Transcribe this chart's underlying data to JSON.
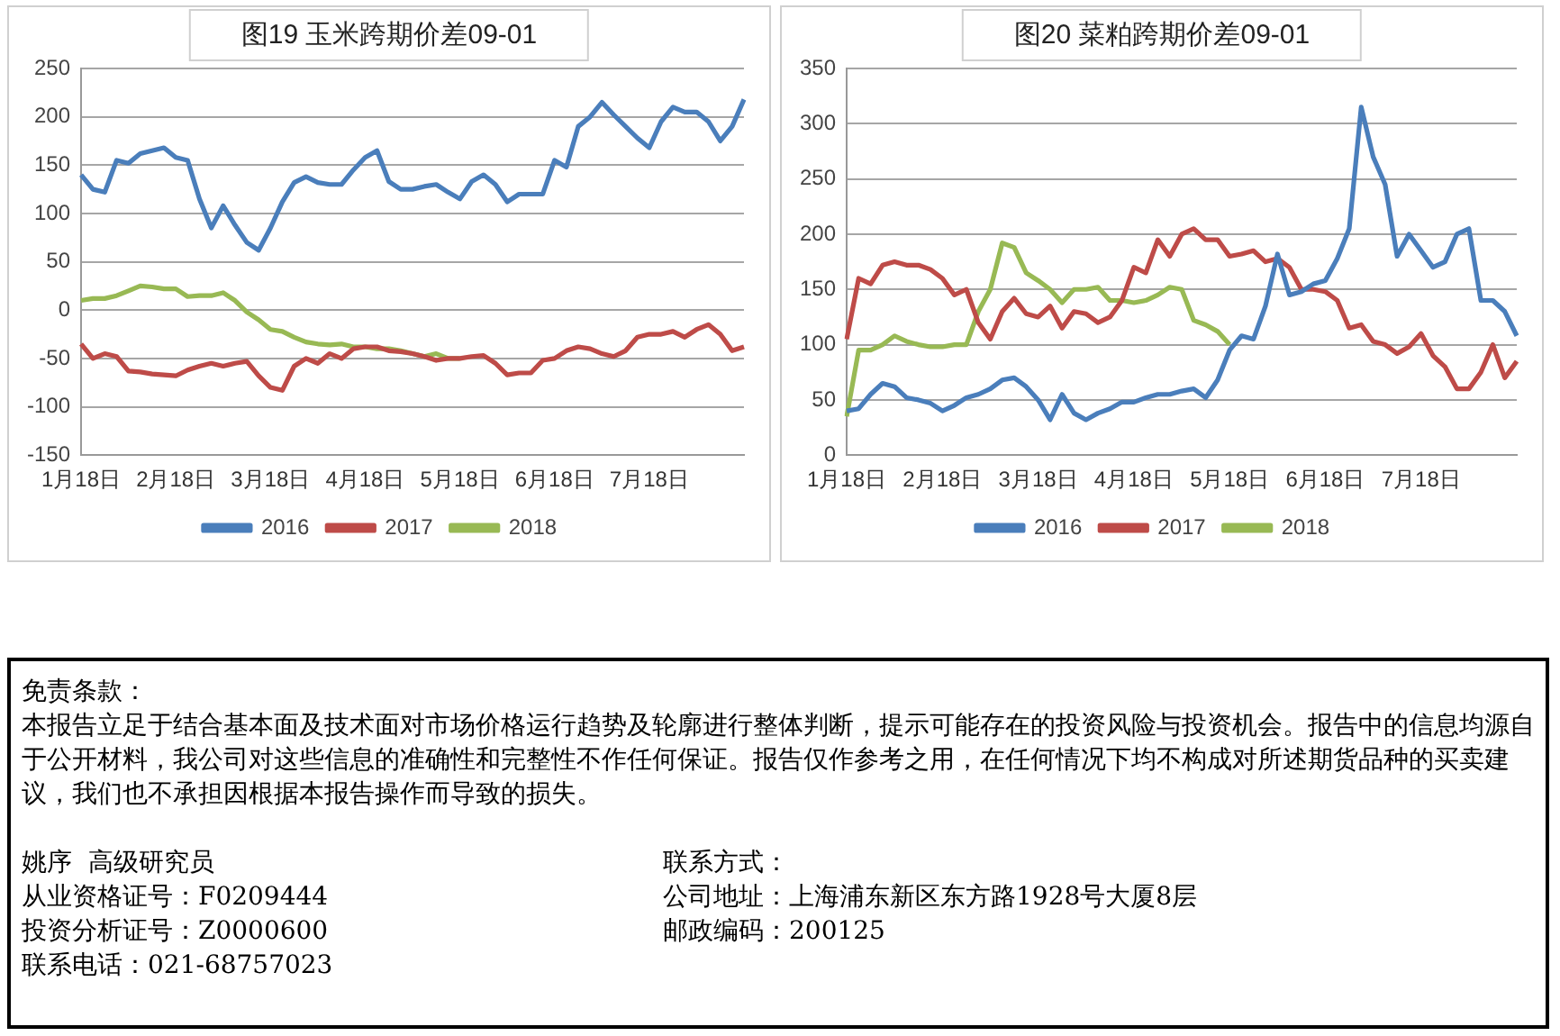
{
  "chart_data": [
    {
      "type": "line",
      "title": "图19 玉米跨期价差09-01",
      "categories": [
        "1月18日",
        null,
        null,
        null,
        null,
        null,
        null,
        null,
        "2月18日",
        null,
        null,
        null,
        null,
        null,
        null,
        null,
        "3月18日",
        null,
        null,
        null,
        null,
        null,
        null,
        null,
        "4月18日",
        null,
        null,
        null,
        null,
        null,
        null,
        null,
        "5月18日",
        null,
        null,
        null,
        null,
        null,
        null,
        null,
        "6月18日",
        null,
        null,
        null,
        null,
        null,
        null,
        null,
        "7月18日",
        null,
        null,
        null,
        null,
        null,
        null,
        null,
        null
      ],
      "ylim": [
        -150,
        250
      ],
      "yticks": [
        -150,
        -100,
        -50,
        0,
        50,
        100,
        150,
        200,
        250
      ],
      "grid": "y",
      "legend": "bottom",
      "series": [
        {
          "name": "2016",
          "color": "#4a7ebb",
          "values": [
            140,
            125,
            122,
            155,
            152,
            162,
            165,
            168,
            158,
            155,
            115,
            85,
            108,
            88,
            70,
            62,
            85,
            112,
            132,
            138,
            132,
            130,
            130,
            145,
            158,
            165,
            133,
            125,
            125,
            128,
            130,
            122,
            115,
            133,
            140,
            130,
            112,
            120,
            120,
            120,
            155,
            148,
            190,
            200,
            215,
            202,
            190,
            178,
            168,
            195,
            210,
            205,
            205,
            195,
            175,
            190,
            218
          ]
        },
        {
          "name": "2017",
          "color": "#be4b48",
          "values": [
            -35,
            -50,
            -45,
            -48,
            -63,
            -64,
            -66,
            -67,
            -68,
            -62,
            -58,
            -55,
            -58,
            -55,
            -53,
            -68,
            -80,
            -83,
            -58,
            -50,
            -55,
            -45,
            -50,
            -40,
            -38,
            -38,
            -42,
            -43,
            -45,
            -48,
            -52,
            -50,
            -50,
            -48,
            -47,
            -55,
            -67,
            -65,
            -65,
            -52,
            -50,
            -42,
            -38,
            -40,
            -45,
            -48,
            -42,
            -28,
            -25,
            -25,
            -22,
            -28,
            -20,
            -15,
            -25,
            -42,
            -38
          ]
        },
        {
          "name": "2018",
          "color": "#98b954",
          "values": [
            10,
            12,
            12,
            15,
            20,
            25,
            24,
            22,
            22,
            14,
            15,
            15,
            18,
            10,
            -2,
            -10,
            -20,
            -22,
            -28,
            -33,
            -35,
            -36,
            -35,
            -38,
            -38,
            -40,
            -40,
            -42,
            -45,
            -48,
            -45,
            -50,
            -50,
            null,
            null,
            null,
            null,
            null,
            null,
            null,
            null,
            null,
            null,
            null,
            null,
            null,
            null,
            null,
            null,
            null,
            null,
            null,
            null,
            null,
            null,
            null,
            null
          ]
        }
      ]
    },
    {
      "type": "line",
      "title": "图20 菜粕跨期价差09-01",
      "categories": [
        "1月18日",
        null,
        null,
        null,
        null,
        null,
        null,
        null,
        "2月18日",
        null,
        null,
        null,
        null,
        null,
        null,
        null,
        "3月18日",
        null,
        null,
        null,
        null,
        null,
        null,
        null,
        "4月18日",
        null,
        null,
        null,
        null,
        null,
        null,
        null,
        "5月18日",
        null,
        null,
        null,
        null,
        null,
        null,
        null,
        "6月18日",
        null,
        null,
        null,
        null,
        null,
        null,
        null,
        "7月18日",
        null,
        null,
        null,
        null,
        null,
        null,
        null,
        null
      ],
      "ylim": [
        0,
        350
      ],
      "yticks": [
        0,
        50,
        100,
        150,
        200,
        250,
        300,
        350
      ],
      "grid": "y",
      "legend": "bottom",
      "series": [
        {
          "name": "2016",
          "color": "#4a7ebb",
          "values": [
            40,
            42,
            55,
            65,
            62,
            52,
            50,
            47,
            40,
            45,
            52,
            55,
            60,
            68,
            70,
            62,
            50,
            32,
            55,
            38,
            32,
            38,
            42,
            48,
            48,
            52,
            55,
            55,
            58,
            60,
            52,
            68,
            95,
            108,
            105,
            135,
            182,
            145,
            148,
            155,
            158,
            178,
            205,
            315,
            270,
            245,
            180,
            200,
            185,
            170,
            175,
            200,
            205,
            140,
            140,
            130,
            108
          ]
        },
        {
          "name": "2017",
          "color": "#be4b48",
          "values": [
            105,
            160,
            155,
            172,
            175,
            172,
            172,
            168,
            160,
            145,
            150,
            120,
            105,
            130,
            142,
            128,
            125,
            135,
            115,
            130,
            128,
            120,
            125,
            140,
            170,
            165,
            195,
            180,
            200,
            205,
            195,
            195,
            180,
            182,
            185,
            175,
            178,
            170,
            150,
            150,
            148,
            140,
            115,
            118,
            103,
            100,
            92,
            98,
            110,
            90,
            80,
            60,
            60,
            75,
            100,
            70,
            85
          ]
        },
        {
          "name": "2018",
          "color": "#98b954",
          "values": [
            35,
            95,
            95,
            100,
            108,
            103,
            100,
            98,
            98,
            100,
            100,
            130,
            150,
            192,
            188,
            165,
            158,
            150,
            138,
            150,
            150,
            152,
            140,
            140,
            138,
            140,
            145,
            152,
            150,
            122,
            118,
            112,
            100,
            null,
            null,
            null,
            null,
            null,
            null,
            null,
            null,
            null,
            null,
            null,
            null,
            null,
            null,
            null,
            null,
            null,
            null,
            null,
            null,
            null,
            null,
            null,
            null
          ]
        }
      ]
    },
    {
      "type": "other",
      "title": "免责条款：",
      "annotations": [
        "本报告立足于结合基本面及技术面对市场价格运行趋势及轮廓进行整体判断，提示可能存在的投资风险与投资机会。报告中的信息均源自于公开材料，我公司对这些信息的准确性和完整性不作任何保证。报告仅作参考之用，在任何情况下均不构成对所述期货品种的买卖建议，我们也不承担因根据本报告操作而导致的损失。",
        "姚序  高级研究员",
        "联系方式：",
        "从业资格证号：F0209444",
        "公司地址：上海浦东新区东方路1928号大厦8层",
        "投资分析证号：Z0000600",
        "邮政编码：200125",
        "联系电话：021-68757023"
      ]
    }
  ]
}
